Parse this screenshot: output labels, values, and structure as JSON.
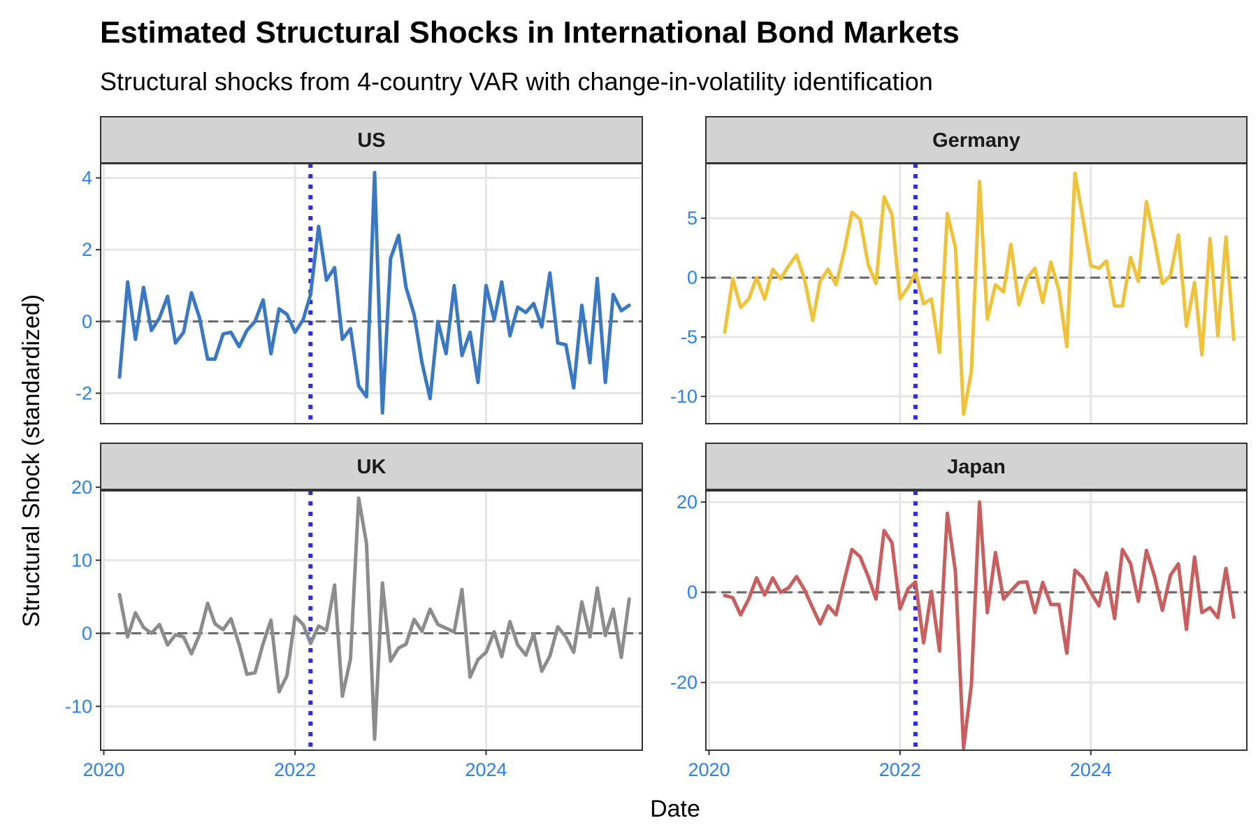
{
  "chart_data": {
    "type": "line",
    "title": "Estimated Structural Shocks in International Bond Markets",
    "subtitle": "Structural shocks from 4-country VAR with change-in-volatility identification",
    "xlabel": "Date",
    "ylabel": "Structural Shock (standardized)",
    "x_ticks": [
      2020,
      2022,
      2024
    ],
    "xlim": [
      "2019-12-20",
      "2025-08-20"
    ],
    "x": [
      "2020-03",
      "2020-04",
      "2020-05",
      "2020-06",
      "2020-07",
      "2020-08",
      "2020-09",
      "2020-10",
      "2020-11",
      "2020-12",
      "2021-01",
      "2021-02",
      "2021-03",
      "2021-04",
      "2021-05",
      "2021-06",
      "2021-07",
      "2021-08",
      "2021-09",
      "2021-10",
      "2021-11",
      "2021-12",
      "2022-01",
      "2022-02",
      "2022-03",
      "2022-04",
      "2022-05",
      "2022-06",
      "2022-07",
      "2022-08",
      "2022-09",
      "2022-10",
      "2022-11",
      "2022-12",
      "2023-01",
      "2023-02",
      "2023-03",
      "2023-04",
      "2023-05",
      "2023-06",
      "2023-07",
      "2023-08",
      "2023-09",
      "2023-10",
      "2023-11",
      "2023-12",
      "2024-01",
      "2024-02",
      "2024-03",
      "2024-04",
      "2024-05",
      "2024-06",
      "2024-07",
      "2024-08",
      "2024-09",
      "2024-10",
      "2024-11",
      "2024-12",
      "2025-01",
      "2025-02",
      "2025-03",
      "2025-04",
      "2025-05",
      "2025-06",
      "2025-07"
    ],
    "vline": "2022-03",
    "hline": 0,
    "grid": true,
    "facets": [
      {
        "name": "US",
        "color": "#3a78c3",
        "ylim": [
          -2.85,
          4.4
        ],
        "y_ticks": [
          -2,
          0,
          2,
          4
        ],
        "values": [
          -1.55,
          1.1,
          -0.5,
          0.95,
          -0.25,
          0.1,
          0.7,
          -0.6,
          -0.3,
          0.8,
          0.1,
          -1.05,
          -1.05,
          -0.35,
          -0.3,
          -0.7,
          -0.25,
          0.0,
          0.6,
          -0.9,
          0.35,
          0.2,
          -0.3,
          0.05,
          0.75,
          2.65,
          1.15,
          1.5,
          -0.5,
          -0.2,
          -1.8,
          -2.1,
          4.15,
          -2.55,
          1.75,
          2.4,
          0.95,
          0.2,
          -1.15,
          -2.15,
          0.0,
          -0.9,
          1.0,
          -0.95,
          -0.3,
          -1.7,
          1.0,
          0.05,
          1.1,
          -0.4,
          0.4,
          0.25,
          0.5,
          -0.15,
          1.35,
          -0.6,
          -0.65,
          -1.85,
          0.45,
          -1.15,
          1.2,
          -1.7,
          0.75,
          0.3,
          0.45
        ]
      },
      {
        "name": "Germany",
        "color": "#efc23a",
        "ylim": [
          -12.3,
          9.6
        ],
        "y_ticks": [
          -10,
          -5,
          0,
          5
        ],
        "values": [
          -4.6,
          -0.1,
          -2.5,
          -1.8,
          0.0,
          -1.8,
          0.7,
          -0.1,
          1.0,
          1.9,
          -0.2,
          -3.6,
          -0.3,
          0.7,
          -0.6,
          2.2,
          5.5,
          4.9,
          1.1,
          -0.5,
          6.8,
          5.3,
          -1.8,
          -0.8,
          0.4,
          -2.2,
          -1.8,
          -6.3,
          5.4,
          2.5,
          -11.5,
          -7.9,
          8.1,
          -3.5,
          -0.6,
          -1.2,
          2.8,
          -2.3,
          -0.1,
          0.8,
          -2.1,
          1.3,
          -1.1,
          -5.8,
          8.8,
          5.1,
          1.0,
          0.8,
          1.4,
          -2.4,
          -2.4,
          1.7,
          -0.3,
          6.4,
          3.1,
          -0.5,
          0.2,
          3.6,
          -4.1,
          -0.4,
          -6.5,
          3.3,
          -4.9,
          3.4,
          -5.2
        ]
      },
      {
        "name": "UK",
        "color": "#8c8c8c",
        "ylim": [
          -16,
          19.5
        ],
        "y_ticks": [
          -10,
          0,
          10,
          20
        ],
        "values": [
          5.3,
          -0.5,
          2.8,
          0.8,
          0.0,
          1.2,
          -1.6,
          -0.2,
          -0.5,
          -2.8,
          -0.2,
          4.1,
          1.3,
          0.5,
          2.0,
          -1.5,
          -5.6,
          -5.4,
          -1.4,
          1.8,
          -8.0,
          -5.8,
          2.3,
          1.2,
          -1.4,
          1.0,
          0.4,
          6.6,
          -8.6,
          -3.5,
          18.5,
          12.3,
          -14.5,
          6.9,
          -3.8,
          -2.0,
          -1.5,
          1.9,
          0.3,
          3.3,
          1.2,
          0.7,
          0.2,
          6.0,
          -6.0,
          -3.6,
          -2.6,
          0.2,
          -3.2,
          1.6,
          -1.6,
          -3.0,
          -0.1,
          -5.2,
          -3.1,
          0.9,
          -0.5,
          -2.6,
          4.3,
          -0.5,
          6.2,
          -0.3,
          3.3,
          -3.3,
          4.7
        ]
      },
      {
        "name": "Japan",
        "color": "#c85e5e",
        "ylim": [
          -35,
          22.5
        ],
        "y_ticks": [
          -20,
          0,
          20
        ],
        "values": [
          -0.7,
          -1.2,
          -5.0,
          -1.5,
          3.2,
          -0.6,
          3.2,
          0.0,
          1.0,
          3.5,
          0.5,
          -3.5,
          -7.0,
          -3.0,
          -5.0,
          2.5,
          9.5,
          7.9,
          3.5,
          -1.5,
          13.7,
          11.0,
          -3.7,
          0.8,
          2.3,
          -11.2,
          0.2,
          -13.0,
          17.5,
          4.5,
          -34.5,
          -20.5,
          20.0,
          -4.5,
          8.8,
          -1.5,
          0.3,
          2.2,
          2.3,
          -4.5,
          2.2,
          -2.7,
          -2.7,
          -13.5,
          4.9,
          3.3,
          0.0,
          -3.0,
          4.3,
          -5.8,
          9.5,
          6.4,
          -2.0,
          9.3,
          3.5,
          -4.0,
          3.8,
          6.3,
          -8.2,
          7.8,
          -4.5,
          -3.4,
          -5.6,
          5.3,
          -5.5
        ]
      }
    ]
  }
}
